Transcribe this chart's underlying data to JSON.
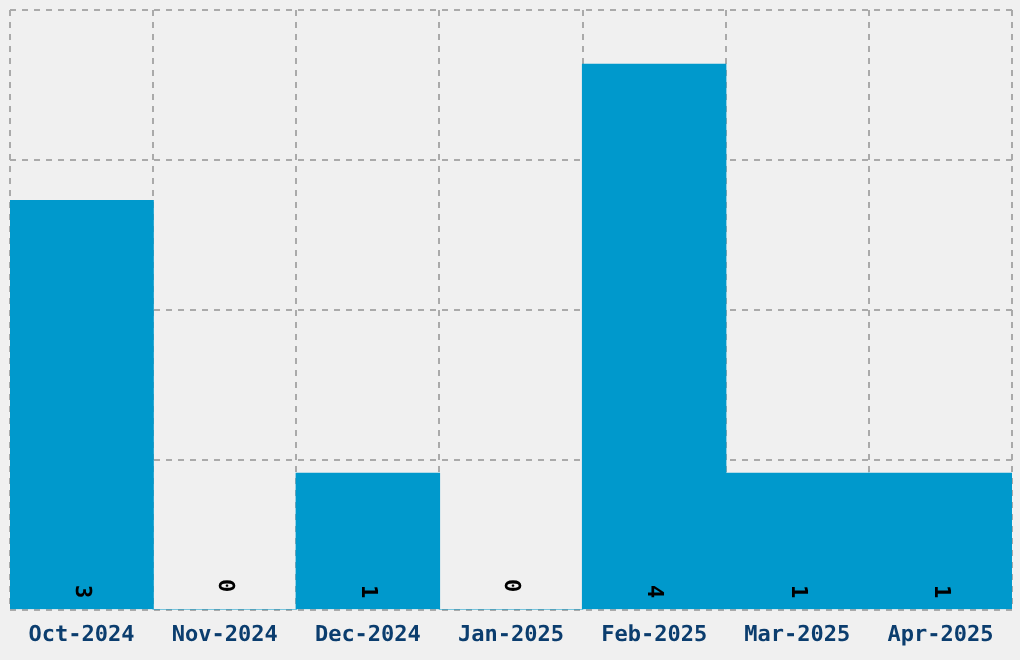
{
  "chart_data": {
    "type": "bar",
    "categories": [
      "Oct-2024",
      "Nov-2024",
      "Dec-2024",
      "Jan-2025",
      "Feb-2025",
      "Mar-2025",
      "Apr-2025"
    ],
    "values": [
      3,
      0,
      1,
      0,
      4,
      1,
      1
    ],
    "color": "#0099cc",
    "data_labels": true,
    "ylim": [
      0,
      4.4
    ],
    "yticks": [
      {
        "value": 0,
        "label": null
      },
      {
        "value": 1.1,
        "label": null
      },
      {
        "value": 2.2,
        "label": null
      },
      {
        "value": 3.3,
        "label": null
      },
      {
        "value": 4.4,
        "label": null
      }
    ],
    "grid": true,
    "line_style": "dashed",
    "tick_labels": "x"
  }
}
